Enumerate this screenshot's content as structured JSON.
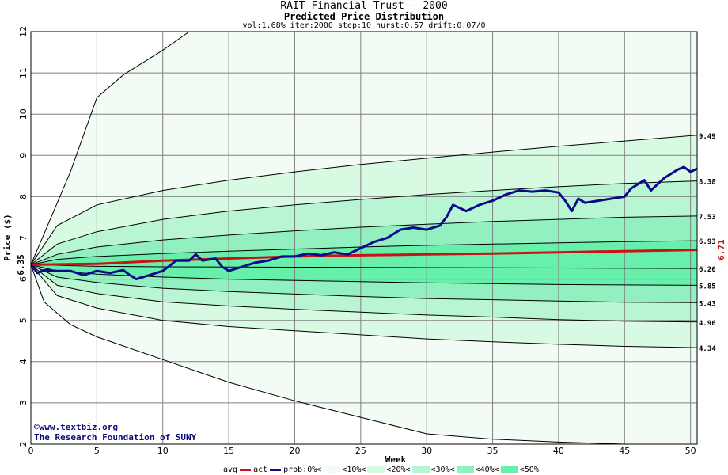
{
  "header": {
    "title": "RAIT Financial Trust - 2000",
    "subtitle": "Predicted Price Distribution",
    "params": "vol:1.68% iter:2000 step:10 hurst:0.57 drift:0.07/0"
  },
  "credits": {
    "line1": "©www.textbiz.org",
    "line2": "The Research Foundation of SUNY"
  },
  "legend": {
    "avg": "avg",
    "act": "act",
    "prob0": "prob:0%<",
    "p10": "<10%<",
    "p20": "<20%<",
    "p30": "<30%<",
    "p40": "<40%<",
    "p50": "<50%"
  },
  "colors": {
    "avg": "#cc1111",
    "act": "#0a0a8c",
    "band0": "#f2fcf4",
    "band10": "#d8fae3",
    "band20": "#b8f5d2",
    "band30": "#92efbf",
    "band40": "#66f0ab",
    "grid": "#808080"
  },
  "chart_data": {
    "type": "line",
    "xlabel": "Week",
    "ylabel": "Price ($)",
    "xlim": [
      0,
      50.5
    ],
    "ylim": [
      2,
      12
    ],
    "xticks": [
      0,
      5,
      10,
      15,
      20,
      25,
      30,
      35,
      40,
      45,
      50
    ],
    "yticks": [
      2,
      3,
      4,
      5,
      6,
      7,
      8,
      9,
      10,
      11,
      12
    ],
    "start_price_label": "6.35",
    "end_price_label": "6.71",
    "percentile_curves": [
      {
        "name": "0%",
        "end_label": "",
        "points": [
          [
            0,
            6.35
          ],
          [
            1,
            5.45
          ],
          [
            3,
            4.9
          ],
          [
            5,
            4.6
          ],
          [
            10,
            4.05
          ],
          [
            15,
            3.5
          ],
          [
            20,
            3.05
          ],
          [
            25,
            2.65
          ],
          [
            30,
            2.25
          ],
          [
            35,
            2.12
          ],
          [
            40,
            2.05
          ],
          [
            45,
            2.0
          ]
        ]
      },
      {
        "name": "10%",
        "end_label": "4.34",
        "points": [
          [
            0,
            6.35
          ],
          [
            2,
            5.6
          ],
          [
            5,
            5.3
          ],
          [
            10,
            5.0
          ],
          [
            15,
            4.85
          ],
          [
            20,
            4.75
          ],
          [
            25,
            4.65
          ],
          [
            30,
            4.55
          ],
          [
            35,
            4.48
          ],
          [
            40,
            4.42
          ],
          [
            45,
            4.37
          ],
          [
            50.5,
            4.34
          ]
        ]
      },
      {
        "name": "20%",
        "end_label": "4.96",
        "points": [
          [
            0,
            6.35
          ],
          [
            2,
            5.85
          ],
          [
            5,
            5.65
          ],
          [
            10,
            5.45
          ],
          [
            15,
            5.35
          ],
          [
            20,
            5.27
          ],
          [
            25,
            5.2
          ],
          [
            30,
            5.13
          ],
          [
            35,
            5.08
          ],
          [
            40,
            5.02
          ],
          [
            45,
            4.98
          ],
          [
            50.5,
            4.96
          ]
        ]
      },
      {
        "name": "30%",
        "end_label": "5.43",
        "points": [
          [
            0,
            6.35
          ],
          [
            2,
            6.05
          ],
          [
            5,
            5.92
          ],
          [
            10,
            5.78
          ],
          [
            15,
            5.7
          ],
          [
            20,
            5.64
          ],
          [
            25,
            5.58
          ],
          [
            30,
            5.53
          ],
          [
            35,
            5.5
          ],
          [
            40,
            5.47
          ],
          [
            45,
            5.44
          ],
          [
            50.5,
            5.43
          ]
        ]
      },
      {
        "name": "40%",
        "end_label": "5.85",
        "points": [
          [
            0,
            6.35
          ],
          [
            2,
            6.2
          ],
          [
            5,
            6.12
          ],
          [
            10,
            6.05
          ],
          [
            15,
            6.0
          ],
          [
            20,
            5.97
          ],
          [
            25,
            5.94
          ],
          [
            30,
            5.91
          ],
          [
            35,
            5.89
          ],
          [
            40,
            5.87
          ],
          [
            45,
            5.86
          ],
          [
            50.5,
            5.85
          ]
        ]
      },
      {
        "name": "50%",
        "end_label": "6.26",
        "points": [
          [
            0,
            6.35
          ],
          [
            5,
            6.31
          ],
          [
            10,
            6.3
          ],
          [
            20,
            6.29
          ],
          [
            30,
            6.28
          ],
          [
            40,
            6.27
          ],
          [
            50.5,
            6.26
          ]
        ]
      },
      {
        "name": "60%",
        "end_label": "6.93",
        "points": [
          [
            0,
            6.35
          ],
          [
            2,
            6.48
          ],
          [
            5,
            6.55
          ],
          [
            10,
            6.62
          ],
          [
            15,
            6.68
          ],
          [
            20,
            6.73
          ],
          [
            25,
            6.78
          ],
          [
            30,
            6.82
          ],
          [
            35,
            6.85
          ],
          [
            40,
            6.88
          ],
          [
            45,
            6.91
          ],
          [
            50.5,
            6.93
          ]
        ]
      },
      {
        "name": "70%",
        "end_label": "7.53",
        "points": [
          [
            0,
            6.35
          ],
          [
            2,
            6.6
          ],
          [
            5,
            6.78
          ],
          [
            10,
            6.95
          ],
          [
            15,
            7.07
          ],
          [
            20,
            7.17
          ],
          [
            25,
            7.26
          ],
          [
            30,
            7.33
          ],
          [
            35,
            7.4
          ],
          [
            40,
            7.45
          ],
          [
            45,
            7.5
          ],
          [
            50.5,
            7.53
          ]
        ]
      },
      {
        "name": "80%",
        "end_label": "8.38",
        "points": [
          [
            0,
            6.35
          ],
          [
            2,
            6.85
          ],
          [
            5,
            7.15
          ],
          [
            10,
            7.45
          ],
          [
            15,
            7.65
          ],
          [
            20,
            7.8
          ],
          [
            25,
            7.93
          ],
          [
            30,
            8.05
          ],
          [
            35,
            8.15
          ],
          [
            40,
            8.24
          ],
          [
            45,
            8.32
          ],
          [
            50.5,
            8.38
          ]
        ]
      },
      {
        "name": "90%",
        "end_label": "9.49",
        "points": [
          [
            0,
            6.35
          ],
          [
            2,
            7.3
          ],
          [
            5,
            7.8
          ],
          [
            10,
            8.15
          ],
          [
            15,
            8.4
          ],
          [
            20,
            8.6
          ],
          [
            25,
            8.78
          ],
          [
            30,
            8.93
          ],
          [
            35,
            9.08
          ],
          [
            40,
            9.22
          ],
          [
            45,
            9.35
          ],
          [
            50.5,
            9.49
          ]
        ]
      },
      {
        "name": "100%",
        "end_label": "",
        "points": [
          [
            0,
            6.35
          ],
          [
            1,
            7.1
          ],
          [
            3,
            8.6
          ],
          [
            5,
            10.4
          ],
          [
            7,
            10.95
          ],
          [
            10,
            11.55
          ],
          [
            12,
            12.0
          ]
        ]
      }
    ],
    "series": [
      {
        "name": "avg",
        "points": [
          [
            0,
            6.35
          ],
          [
            5,
            6.37
          ],
          [
            10,
            6.45
          ],
          [
            15,
            6.5
          ],
          [
            20,
            6.55
          ],
          [
            25,
            6.58
          ],
          [
            30,
            6.6
          ],
          [
            35,
            6.62
          ],
          [
            40,
            6.65
          ],
          [
            45,
            6.68
          ],
          [
            50.5,
            6.71
          ]
        ]
      },
      {
        "name": "act",
        "points": [
          [
            0,
            6.35
          ],
          [
            0.5,
            6.15
          ],
          [
            1,
            6.22
          ],
          [
            2,
            6.2
          ],
          [
            3,
            6.2
          ],
          [
            4,
            6.1
          ],
          [
            5,
            6.2
          ],
          [
            6,
            6.15
          ],
          [
            7,
            6.22
          ],
          [
            7.5,
            6.1
          ],
          [
            8,
            6.0
          ],
          [
            9,
            6.1
          ],
          [
            10,
            6.2
          ],
          [
            10.5,
            6.32
          ],
          [
            11,
            6.45
          ],
          [
            12,
            6.45
          ],
          [
            12.5,
            6.6
          ],
          [
            13,
            6.45
          ],
          [
            14,
            6.5
          ],
          [
            14.5,
            6.3
          ],
          [
            15,
            6.2
          ],
          [
            16,
            6.3
          ],
          [
            17,
            6.4
          ],
          [
            18,
            6.45
          ],
          [
            19,
            6.55
          ],
          [
            20,
            6.55
          ],
          [
            21,
            6.62
          ],
          [
            22,
            6.58
          ],
          [
            23,
            6.65
          ],
          [
            24,
            6.6
          ],
          [
            25,
            6.75
          ],
          [
            26,
            6.9
          ],
          [
            27,
            7.0
          ],
          [
            28,
            7.2
          ],
          [
            29,
            7.25
          ],
          [
            30,
            7.2
          ],
          [
            31,
            7.3
          ],
          [
            31.5,
            7.5
          ],
          [
            32,
            7.8
          ],
          [
            33,
            7.65
          ],
          [
            34,
            7.8
          ],
          [
            35,
            7.9
          ],
          [
            36,
            8.05
          ],
          [
            37,
            8.15
          ],
          [
            38,
            8.12
          ],
          [
            39,
            8.15
          ],
          [
            40,
            8.1
          ],
          [
            40.5,
            7.9
          ],
          [
            41,
            7.65
          ],
          [
            41.5,
            7.95
          ],
          [
            42,
            7.85
          ],
          [
            43,
            7.9
          ],
          [
            44,
            7.95
          ],
          [
            45,
            8.0
          ],
          [
            45.5,
            8.2
          ],
          [
            46,
            8.3
          ],
          [
            46.5,
            8.4
          ],
          [
            47,
            8.15
          ],
          [
            48,
            8.45
          ],
          [
            48.5,
            8.55
          ],
          [
            49,
            8.65
          ],
          [
            49.5,
            8.72
          ],
          [
            50,
            8.6
          ],
          [
            50.5,
            8.68
          ]
        ]
      }
    ]
  }
}
